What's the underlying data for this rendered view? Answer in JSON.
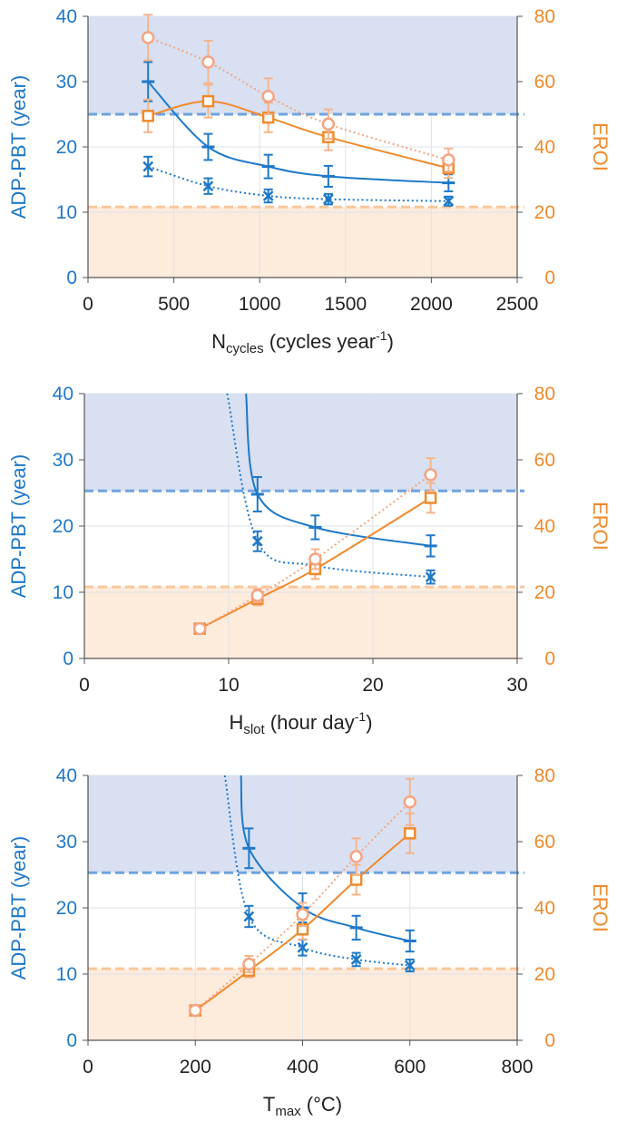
{
  "colors": {
    "left_axis": "#1f78c8",
    "right_axis": "#f08a2c",
    "blue_band": "#d8e0f2",
    "orange_band": "#fdebdc",
    "grid": "#dce3ea",
    "blue_dashed": "#6fa3dd",
    "orange_dashed": "#f9c79a",
    "light_orange": "#f4a582"
  },
  "chart_data": [
    {
      "type": "line",
      "xlabel_main": "N",
      "xlabel_sub": "cycles",
      "xlabel_rest": " (cycles year",
      "xlabel_sup": "-1",
      "xlabel_end": ")",
      "ylabel": "ADP-PBT (year)",
      "y2label": "EROI",
      "xlim": [
        0,
        2500
      ],
      "ylim": [
        0,
        40
      ],
      "y2lim": [
        0,
        80
      ],
      "xticks": [
        "0",
        "500",
        "1000",
        "1500",
        "2000",
        "2500"
      ],
      "yticks": [
        "0",
        "10",
        "20",
        "30",
        "40"
      ],
      "y2ticks": [
        "0",
        "20",
        "40",
        "60",
        "80"
      ],
      "blue_threshold": 25,
      "orange_threshold": 10.8,
      "series": [
        {
          "axis": "left",
          "style": "solid",
          "marker": "plus",
          "x": [
            350,
            700,
            1050,
            1400,
            2100
          ],
          "y": [
            30,
            20,
            17,
            15.5,
            14.5
          ],
          "err": [
            3,
            2,
            1.8,
            1.6,
            1.3
          ]
        },
        {
          "axis": "left",
          "style": "dotted",
          "marker": "x",
          "x": [
            350,
            700,
            1050,
            1400,
            2100
          ],
          "y": [
            17,
            14,
            12.5,
            12,
            11.7
          ],
          "err": [
            1.5,
            1.2,
            1,
            0.8,
            0.7
          ]
        },
        {
          "axis": "right",
          "style": "solid",
          "marker": "square",
          "x": [
            350,
            700,
            1050,
            1400,
            2100
          ],
          "y": [
            49.5,
            54,
            49,
            43,
            33.5
          ],
          "err": [
            5,
            5,
            4.5,
            4,
            3
          ]
        },
        {
          "axis": "right",
          "style": "dotted",
          "marker": "circle",
          "x": [
            350,
            700,
            1050,
            1400,
            2100
          ],
          "y": [
            73.5,
            66,
            55.5,
            47,
            36
          ],
          "err": [
            7,
            6.5,
            5.5,
            4.5,
            3.5
          ]
        }
      ]
    },
    {
      "type": "line",
      "xlabel_main": "H",
      "xlabel_sub": "slot",
      "xlabel_rest": " (hour day",
      "xlabel_sup": "-1",
      "xlabel_end": ")",
      "ylabel": "ADP-PBT (year)",
      "y2label": "EROI",
      "xlim": [
        0,
        30
      ],
      "ylim": [
        0,
        40
      ],
      "y2lim": [
        0,
        80
      ],
      "xticks": [
        "0",
        "10",
        "20",
        "30"
      ],
      "yticks": [
        "0",
        "10",
        "20",
        "30",
        "40"
      ],
      "y2ticks": [
        "0",
        "20",
        "40",
        "60",
        "80"
      ],
      "blue_threshold": 25.3,
      "orange_threshold": 10.8,
      "series": [
        {
          "axis": "left",
          "style": "solid",
          "marker": "plus",
          "x": [
            12,
            16,
            24
          ],
          "y": [
            24.8,
            19.8,
            17
          ],
          "err": [
            2.6,
            1.8,
            1.6
          ],
          "curve_start": [
            11.2,
            40
          ]
        },
        {
          "axis": "left",
          "style": "dotted",
          "marker": "x",
          "x": [
            12,
            16,
            24
          ],
          "y": [
            17.7,
            14,
            12.3
          ],
          "err": [
            1.5,
            1.2,
            1
          ],
          "curve_start": [
            9.9,
            40
          ]
        },
        {
          "axis": "right",
          "style": "solid",
          "marker": "square",
          "x": [
            8,
            12,
            16,
            24
          ],
          "y": [
            9,
            18,
            27,
            48.5
          ],
          "err": [
            1,
            2,
            3,
            4.5
          ]
        },
        {
          "axis": "right",
          "style": "dotted",
          "marker": "circle",
          "x": [
            8,
            12,
            16,
            24
          ],
          "y": [
            9,
            19,
            30,
            55.5
          ],
          "err": [
            1,
            2,
            3,
            5
          ]
        }
      ]
    },
    {
      "type": "line",
      "xlabel_main": "T",
      "xlabel_sub": "max",
      "xlabel_rest": " (°C)",
      "xlabel_sup": "",
      "xlabel_end": "",
      "ylabel": "ADP-PBT (year)",
      "y2label": "EROI",
      "xlim": [
        0,
        800
      ],
      "ylim": [
        0,
        40
      ],
      "y2lim": [
        0,
        80
      ],
      "xticks": [
        "0",
        "200",
        "400",
        "600",
        "800"
      ],
      "yticks": [
        "0",
        "10",
        "20",
        "30",
        "40"
      ],
      "y2ticks": [
        "0",
        "20",
        "40",
        "60",
        "80"
      ],
      "blue_threshold": 25.3,
      "orange_threshold": 10.8,
      "series": [
        {
          "axis": "left",
          "style": "solid",
          "marker": "plus",
          "x": [
            300,
            400,
            500,
            600
          ],
          "y": [
            29,
            20,
            17,
            15
          ],
          "err": [
            3,
            2.2,
            1.8,
            1.6
          ],
          "curve_start": [
            285,
            40
          ]
        },
        {
          "axis": "left",
          "style": "dotted",
          "marker": "x",
          "x": [
            300,
            400,
            500,
            600
          ],
          "y": [
            18.7,
            14,
            12.2,
            11.3
          ],
          "err": [
            1.6,
            1.2,
            1,
            0.9
          ],
          "curve_start": [
            255,
            40
          ]
        },
        {
          "axis": "right",
          "style": "solid",
          "marker": "square",
          "x": [
            200,
            300,
            400,
            500,
            600
          ],
          "y": [
            9,
            21,
            33.5,
            48.5,
            62.5
          ],
          "err": [
            1,
            2,
            3,
            4.5,
            6
          ]
        },
        {
          "axis": "right",
          "style": "dotted",
          "marker": "circle",
          "x": [
            200,
            300,
            400,
            500,
            600
          ],
          "y": [
            9,
            23,
            38,
            55.5,
            72
          ],
          "err": [
            1,
            2.5,
            3.5,
            5.5,
            7
          ]
        }
      ]
    }
  ]
}
